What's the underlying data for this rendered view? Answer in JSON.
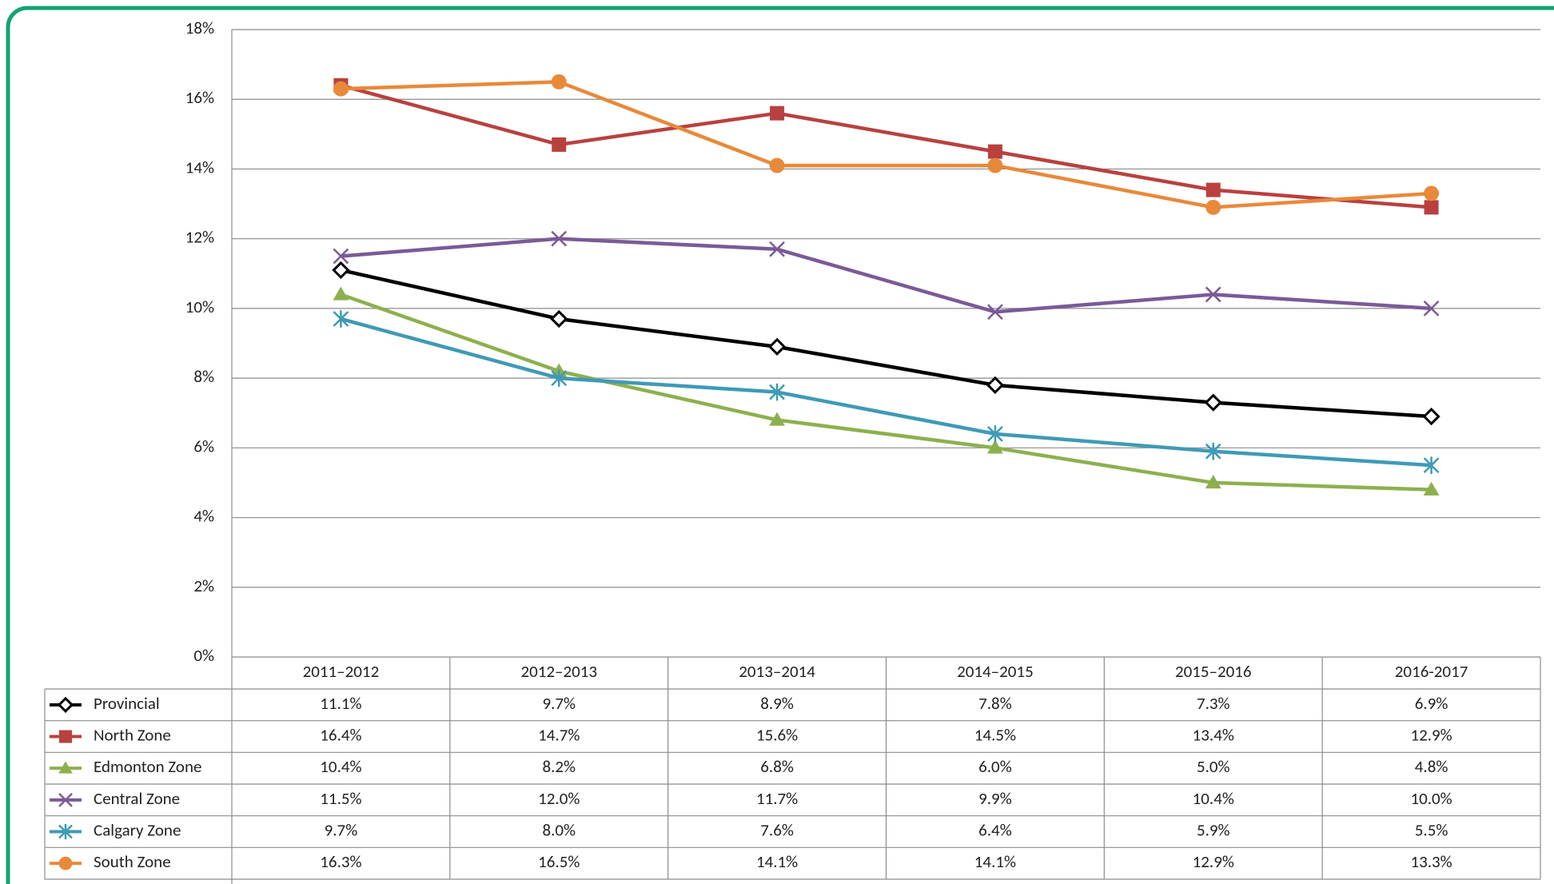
{
  "chart_data": {
    "type": "line",
    "categories": [
      "2011–2012",
      "2012–2013",
      "2013–2014",
      "2014–2015",
      "2015–2016",
      "2016-2017"
    ],
    "ylim": [
      0,
      18
    ],
    "yticks": [
      {
        "value": 0,
        "label": "0%"
      },
      {
        "value": 2,
        "label": "2%"
      },
      {
        "value": 4,
        "label": "4%"
      },
      {
        "value": 6,
        "label": "6%"
      },
      {
        "value": 8,
        "label": "8%"
      },
      {
        "value": 10,
        "label": "10%"
      },
      {
        "value": 12,
        "label": "12%"
      },
      {
        "value": 14,
        "label": "14%"
      },
      {
        "value": 16,
        "label": "16%"
      },
      {
        "value": 18,
        "label": "18%"
      }
    ],
    "grid": true,
    "series": [
      {
        "name": "Provincial",
        "color": "#000000",
        "marker": "diamond",
        "values": [
          11.1,
          9.7,
          8.9,
          7.8,
          7.3,
          6.9
        ],
        "value_labels": [
          "11.1%",
          "9.7%",
          "8.9%",
          "7.8%",
          "7.3%",
          "6.9%"
        ]
      },
      {
        "name": "North Zone",
        "color": "#b8413f",
        "marker": "square",
        "values": [
          16.4,
          14.7,
          15.6,
          14.5,
          13.4,
          12.9
        ],
        "value_labels": [
          "16.4%",
          "14.7%",
          "15.6%",
          "14.5%",
          "13.4%",
          "12.9%"
        ]
      },
      {
        "name": "Edmonton Zone",
        "color": "#8db04e",
        "marker": "triangle",
        "values": [
          10.4,
          8.2,
          6.8,
          6.0,
          5.0,
          4.8
        ],
        "value_labels": [
          "10.4%",
          "8.2%",
          "6.8%",
          "6.0%",
          "5.0%",
          "4.8%"
        ]
      },
      {
        "name": "Central Zone",
        "color": "#7a5a98",
        "marker": "x",
        "values": [
          11.5,
          12.0,
          11.7,
          9.9,
          10.4,
          10.0
        ],
        "value_labels": [
          "11.5%",
          "12.0%",
          "11.7%",
          "9.9%",
          "10.4%",
          "10.0%"
        ]
      },
      {
        "name": "Calgary Zone",
        "color": "#3f9ab5",
        "marker": "star",
        "values": [
          9.7,
          8.0,
          7.6,
          6.4,
          5.9,
          5.5
        ],
        "value_labels": [
          "9.7%",
          "8.0%",
          "7.6%",
          "6.4%",
          "5.9%",
          "5.5%"
        ]
      },
      {
        "name": "South Zone",
        "color": "#e8893a",
        "marker": "circle",
        "values": [
          16.3,
          16.5,
          14.1,
          14.1,
          12.9,
          13.3
        ],
        "value_labels": [
          "16.3%",
          "16.5%",
          "14.1%",
          "14.1%",
          "12.9%",
          "13.3%"
        ]
      }
    ]
  }
}
